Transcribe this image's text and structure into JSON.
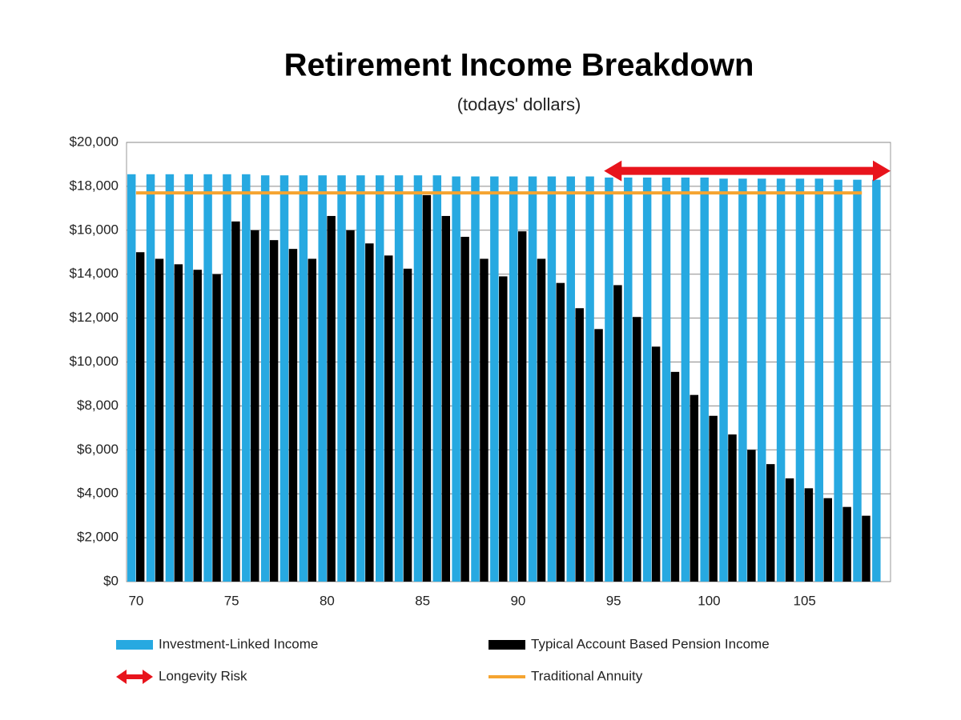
{
  "chart_data": {
    "type": "bar",
    "title": "Retirement Income Breakdown",
    "subtitle": "(todays' dollars)",
    "x": [
      70,
      71,
      72,
      73,
      74,
      75,
      76,
      77,
      78,
      79,
      80,
      81,
      82,
      83,
      84,
      85,
      86,
      87,
      88,
      89,
      90,
      91,
      92,
      93,
      94,
      95,
      96,
      97,
      98,
      99,
      100,
      101,
      102,
      103,
      104,
      105,
      106,
      107,
      108,
      109
    ],
    "xlim": [
      69.5,
      109.5
    ],
    "xticks": [
      70,
      75,
      80,
      85,
      90,
      95,
      100,
      105
    ],
    "ylim": [
      0,
      20000
    ],
    "yticks": [
      {
        "value": 0,
        "label": "$0"
      },
      {
        "value": 2000,
        "label": "$2,000"
      },
      {
        "value": 4000,
        "label": "$4,000"
      },
      {
        "value": 6000,
        "label": "$6,000"
      },
      {
        "value": 8000,
        "label": "$8,000"
      },
      {
        "value": 10000,
        "label": "$10,000"
      },
      {
        "value": 12000,
        "label": "$12,000"
      },
      {
        "value": 14000,
        "label": "$14,000"
      },
      {
        "value": 16000,
        "label": "$16,000"
      },
      {
        "value": 18000,
        "label": "$18,000"
      },
      {
        "value": 20000,
        "label": "$20,000"
      }
    ],
    "grid": true,
    "series": [
      {
        "name": "Investment-Linked Income",
        "type": "bar",
        "color": "#27a9e1",
        "values": [
          18550,
          18550,
          18550,
          18550,
          18550,
          18550,
          18550,
          18500,
          18500,
          18500,
          18500,
          18500,
          18500,
          18500,
          18500,
          18500,
          18500,
          18450,
          18450,
          18450,
          18450,
          18450,
          18450,
          18450,
          18450,
          18400,
          18400,
          18400,
          18400,
          18400,
          18400,
          18350,
          18350,
          18350,
          18350,
          18350,
          18350,
          18300,
          18300,
          18300
        ]
      },
      {
        "name": "Typical Account Based Pension Income",
        "type": "bar",
        "color": "#000000",
        "values": [
          15000,
          14700,
          14450,
          14200,
          14000,
          16400,
          16000,
          15550,
          15150,
          14700,
          16650,
          16000,
          15400,
          14850,
          14250,
          17600,
          16650,
          15700,
          14700,
          13900,
          15950,
          14700,
          13600,
          12450,
          11500,
          13500,
          12050,
          10700,
          9550,
          8500,
          7550,
          6700,
          6000,
          5350,
          4700,
          4250,
          3800,
          3400,
          3000,
          null
        ]
      },
      {
        "name": "Traditional Annuity",
        "type": "line",
        "color": "#f5a431",
        "values": [
          17700,
          17700,
          17700,
          17700,
          17700,
          17700,
          17700,
          17700,
          17700,
          17700,
          17700,
          17700,
          17700,
          17700,
          17700,
          17700,
          17700,
          17700,
          17700,
          17700,
          17700,
          17700,
          17700,
          17700,
          17700,
          17700,
          17700,
          17700,
          17700,
          17700,
          17700,
          17700,
          17700,
          17700,
          17700,
          17700,
          17700,
          17700,
          17700,
          null
        ]
      }
    ],
    "annotation": {
      "name": "Longevity Risk",
      "color": "#e8141c",
      "x": [
        94.5,
        109.5
      ],
      "y": 18700
    }
  }
}
